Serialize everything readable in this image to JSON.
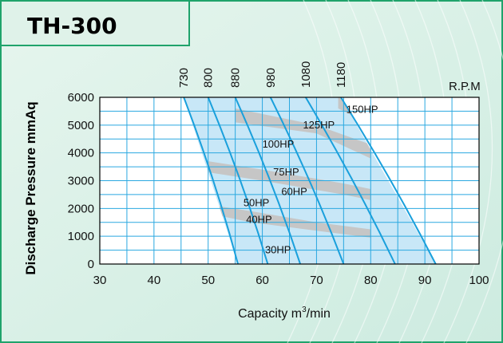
{
  "chart_data": {
    "type": "line",
    "title": "TH-300",
    "ylabel": "Discharge  Pressure  mmAq",
    "xlabel_main": "Capacity  m",
    "xlabel_sup": "3",
    "xlabel_tail": "/min",
    "xlim": [
      30,
      100
    ],
    "ylim": [
      0,
      6000
    ],
    "x_ticks": [
      30,
      40,
      50,
      60,
      70,
      80,
      90,
      100
    ],
    "y_ticks": [
      0,
      1000,
      2000,
      3000,
      4000,
      5000,
      6000
    ],
    "rpm_label": "R.P.M",
    "speed_lines": [
      {
        "rpm": "730",
        "x_top": 45.5,
        "x_bottom": 55.5
      },
      {
        "rpm": "800",
        "x_top": 50.0,
        "x_bottom": 61.0
      },
      {
        "rpm": "880",
        "x_top": 55.0,
        "x_bottom": 67.0
      },
      {
        "rpm": "980",
        "x_top": 61.5,
        "x_bottom": 75.0
      },
      {
        "rpm": "1080",
        "x_top": 68.0,
        "x_bottom": 84.5
      },
      {
        "rpm": "1180",
        "x_top": 74.5,
        "x_bottom": 92.0
      }
    ],
    "power_bands": [
      {
        "label": "150HP",
        "label_x": 75.5,
        "label_y": 5550
      },
      {
        "label": "125HP",
        "label_x": 67.5,
        "label_y": 5000
      },
      {
        "label": "100HP",
        "label_x": 60.0,
        "label_y": 4300
      },
      {
        "label": "75HP",
        "label_x": 62.0,
        "label_y": 3300
      },
      {
        "label": "60HP",
        "label_x": 63.5,
        "label_y": 2600
      },
      {
        "label": "50HP",
        "label_x": 56.5,
        "label_y": 2200
      },
      {
        "label": "40HP",
        "label_x": 57.0,
        "label_y": 1600
      },
      {
        "label": "30HP",
        "label_x": 60.5,
        "label_y": 500
      }
    ],
    "grid": true,
    "colors": {
      "panel_background": "#dff1ea",
      "frame_border": "#1fa36b",
      "plot_border": "#000000",
      "grid": "#2aa8e0",
      "speed_line": "#1aa0dc",
      "envelope_fill": "#c8e7f7",
      "band_fill": "#c6c6c6",
      "title_background": "#dff2e9"
    }
  }
}
